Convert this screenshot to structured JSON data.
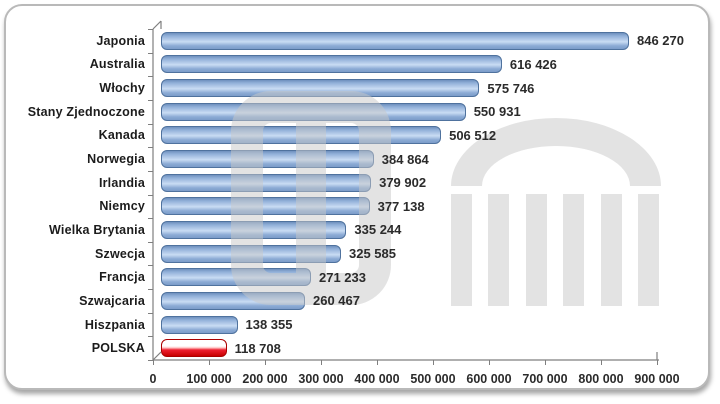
{
  "chart_data": {
    "type": "bar",
    "orientation": "horizontal",
    "title": "",
    "xlabel": "",
    "ylabel": "",
    "categories": [
      "Japonia",
      "Australia",
      "Włochy",
      "Stany Zjednoczone",
      "Kanada",
      "Norwegia",
      "Irlandia",
      "Niemcy",
      "Wielka Brytania",
      "Szwecja",
      "Francja",
      "Szwajcaria",
      "Hiszpania",
      "POLSKA"
    ],
    "values": [
      846270,
      616426,
      575746,
      550931,
      506512,
      384864,
      379902,
      377138,
      335244,
      325585,
      271233,
      260467,
      138355,
      118708
    ],
    "value_labels": [
      "846 270",
      "616 426",
      "575 746",
      "550 931",
      "506 512",
      "384 864",
      "379 902",
      "377 138",
      "335 244",
      "325 585",
      "271 233",
      "260 467",
      "138 355",
      "118 708"
    ],
    "xlim": [
      0,
      900000
    ],
    "x_tick_labels": [
      "0",
      "100 000",
      "200 000",
      "300 000",
      "400 000",
      "500 000",
      "600 000",
      "700 000",
      "800 000",
      "900 000"
    ],
    "grid": "off",
    "legend": "none",
    "highlight_index": 13,
    "colors": {
      "bar_fill": "#8fafd9",
      "bar_border": "#4f729e",
      "highlight_fill": "#e8112d",
      "highlight_border": "#aa0000",
      "axis": "#7f7f7f",
      "text": "#2b2b2b",
      "frame_border": "#b9b9b9",
      "watermark": "#c9c9c9"
    },
    "watermark_icon": "parliament-building-watermark"
  }
}
